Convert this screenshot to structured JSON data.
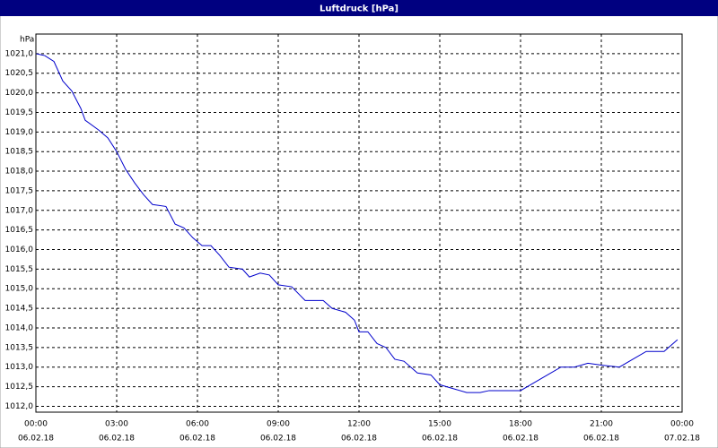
{
  "chart_data": {
    "type": "line",
    "title": "Luftdruck [hPa]",
    "y_unit": "hPa",
    "x": [
      0,
      0.33,
      0.67,
      1.0,
      1.33,
      1.67,
      1.83,
      2.33,
      2.67,
      3.0,
      3.33,
      3.67,
      4.0,
      4.33,
      4.83,
      5.17,
      5.5,
      5.83,
      6.17,
      6.5,
      6.83,
      7.17,
      7.67,
      7.93,
      8.33,
      8.67,
      9.0,
      9.5,
      10.0,
      10.67,
      11.0,
      11.5,
      11.83,
      12.0,
      12.33,
      12.67,
      13.0,
      13.33,
      13.67,
      14.17,
      14.67,
      15.0,
      15.5,
      16.0,
      16.5,
      16.83,
      17.33,
      18.0,
      18.5,
      19.0,
      19.5,
      20.0,
      20.5,
      21.0,
      21.67,
      22.17,
      22.67,
      23.33,
      23.83
    ],
    "series": [
      {
        "name": "Luftdruck",
        "color": "#0000cc",
        "values": [
          1021.0,
          1020.95,
          1020.8,
          1020.3,
          1020.05,
          1019.6,
          1019.3,
          1019.05,
          1018.85,
          1018.5,
          1018.05,
          1017.7,
          1017.4,
          1017.15,
          1017.1,
          1016.65,
          1016.55,
          1016.3,
          1016.1,
          1016.1,
          1015.85,
          1015.55,
          1015.5,
          1015.3,
          1015.4,
          1015.35,
          1015.1,
          1015.05,
          1014.7,
          1014.7,
          1014.5,
          1014.4,
          1014.2,
          1013.9,
          1013.9,
          1013.6,
          1013.5,
          1013.2,
          1013.15,
          1012.85,
          1012.8,
          1012.55,
          1012.45,
          1012.35,
          1012.35,
          1012.4,
          1012.4,
          1012.4,
          1012.6,
          1012.8,
          1013.0,
          1013.0,
          1013.1,
          1013.05,
          1013.0,
          1013.2,
          1013.4,
          1013.4,
          1013.7
        ]
      }
    ],
    "xlim": [
      0,
      24
    ],
    "xticks": [
      {
        "value": 0,
        "label": "00:00",
        "date": "06.02.18"
      },
      {
        "value": 3,
        "label": "03:00",
        "date": "06.02.18"
      },
      {
        "value": 6,
        "label": "06:00",
        "date": "06.02.18"
      },
      {
        "value": 9,
        "label": "09:00",
        "date": "06.02.18"
      },
      {
        "value": 12,
        "label": "12:00",
        "date": "06.02.18"
      },
      {
        "value": 15,
        "label": "15:00",
        "date": "06.02.18"
      },
      {
        "value": 18,
        "label": "18:00",
        "date": "06.02.18"
      },
      {
        "value": 21,
        "label": "21:00",
        "date": "06.02.18"
      },
      {
        "value": 24,
        "label": "00:00",
        "date": "07.02.18"
      }
    ],
    "ylim": [
      1011.85,
      1021.5
    ],
    "yticks": [
      {
        "value": 1012.0,
        "label": "1012,0"
      },
      {
        "value": 1012.5,
        "label": "1012,5"
      },
      {
        "value": 1013.0,
        "label": "1013,0"
      },
      {
        "value": 1013.5,
        "label": "1013,5"
      },
      {
        "value": 1014.0,
        "label": "1014,0"
      },
      {
        "value": 1014.5,
        "label": "1014,5"
      },
      {
        "value": 1015.0,
        "label": "1015,0"
      },
      {
        "value": 1015.5,
        "label": "1015,5"
      },
      {
        "value": 1016.0,
        "label": "1016,0"
      },
      {
        "value": 1016.5,
        "label": "1016,5"
      },
      {
        "value": 1017.0,
        "label": "1017,0"
      },
      {
        "value": 1017.5,
        "label": "1017,5"
      },
      {
        "value": 1018.0,
        "label": "1018,0"
      },
      {
        "value": 1018.5,
        "label": "1018,5"
      },
      {
        "value": 1019.0,
        "label": "1019,0"
      },
      {
        "value": 1019.5,
        "label": "1019,5"
      },
      {
        "value": 1020.0,
        "label": "1020,0"
      },
      {
        "value": 1020.5,
        "label": "1020,5"
      },
      {
        "value": 1021.0,
        "label": "1021,0"
      }
    ],
    "grid": true
  }
}
